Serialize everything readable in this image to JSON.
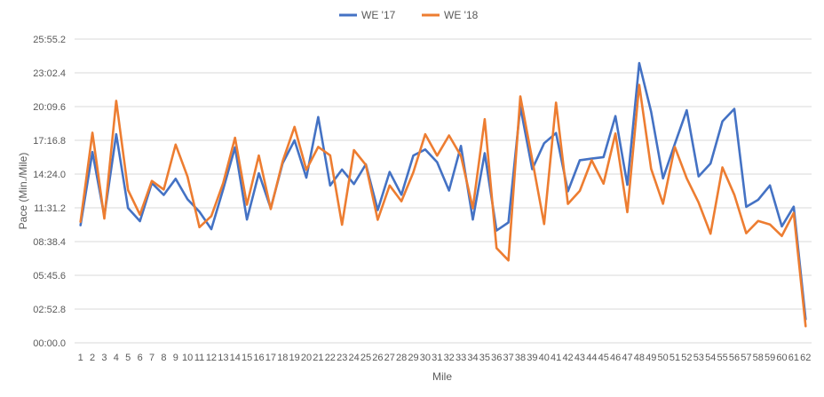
{
  "chart_data": {
    "type": "line",
    "xlabel": "Mile",
    "ylabel": "Pace (Min./Mile)",
    "x": [
      1,
      2,
      3,
      4,
      5,
      6,
      7,
      8,
      9,
      10,
      11,
      12,
      13,
      14,
      15,
      16,
      17,
      18,
      19,
      20,
      21,
      22,
      23,
      24,
      25,
      26,
      27,
      28,
      29,
      30,
      31,
      32,
      33,
      34,
      35,
      36,
      37,
      38,
      39,
      40,
      41,
      42,
      43,
      44,
      45,
      46,
      47,
      48,
      49,
      50,
      51,
      52,
      53,
      54,
      55,
      56,
      57,
      58,
      59,
      60,
      61,
      62
    ],
    "x_tick_labels": [
      "1",
      "2",
      "3",
      "4",
      "5",
      "6",
      "7",
      "8",
      "9",
      "10",
      "11",
      "12",
      "13",
      "14",
      "15",
      "16",
      "17",
      "18",
      "19",
      "20",
      "21",
      "22",
      "23",
      "24",
      "25",
      "26",
      "27",
      "28",
      "29",
      "30",
      "31",
      "32",
      "33",
      "34",
      "35",
      "36",
      "37",
      "38",
      "39",
      "40",
      "41",
      "42",
      "43",
      "44",
      "45",
      "46",
      "47",
      "48",
      "49",
      "50",
      "51",
      "52",
      "53",
      "54",
      "55",
      "56",
      "57",
      "58",
      "59",
      "60",
      "61",
      "62"
    ],
    "y_ticks": [
      0,
      172.8,
      345.6,
      518.4,
      691.2,
      864,
      1036.8,
      1209.6,
      1382.4,
      1555.2
    ],
    "y_tick_labels": [
      "00:00.0",
      "02:52.8",
      "05:45.6",
      "08:38.4",
      "11:31.2",
      "14:24.0",
      "17:16.8",
      "20:09.6",
      "23:02.4",
      "25:55.2"
    ],
    "ylim": [
      0,
      1555.2
    ],
    "legend_position": "top-center",
    "grid": "horizontal",
    "series": [
      {
        "name": "WE '17",
        "color": "#4472C4",
        "values": [
          602,
          977,
          649,
          1068,
          690,
          623,
          818,
          757,
          840,
          735,
          671,
          582,
          786,
          1001,
          631,
          868,
          689,
          919,
          1037,
          846,
          1156,
          806,
          887,
          813,
          914,
          680,
          875,
          758,
          959,
          990,
          925,
          780,
          1008,
          631,
          971,
          575,
          616,
          1209,
          889,
          1022,
          1074,
          776,
          935,
          943,
          951,
          1161,
          809,
          1432,
          1183,
          842,
          1018,
          1191,
          852,
          918,
          1134,
          1198,
          696,
          732,
          806,
          596,
          697,
          121
        ]
      },
      {
        "name": "WE '18",
        "color": "#ED7D31",
        "values": [
          620,
          1076,
          636,
          1239,
          782,
          656,
          829,
          785,
          1015,
          851,
          592,
          649,
          817,
          1050,
          707,
          959,
          685,
          929,
          1106,
          886,
          1003,
          960,
          605,
          987,
          911,
          630,
          806,
          725,
          873,
          1068,
          958,
          1062,
          957,
          689,
          1145,
          485,
          422,
          1262,
          938,
          608,
          1230,
          711,
          778,
          935,
          815,
          1072,
          669,
          1321,
          891,
          712,
          1003,
          842,
          718,
          559,
          898,
          758,
          561,
          624,
          606,
          547,
          665,
          85
        ]
      }
    ]
  }
}
